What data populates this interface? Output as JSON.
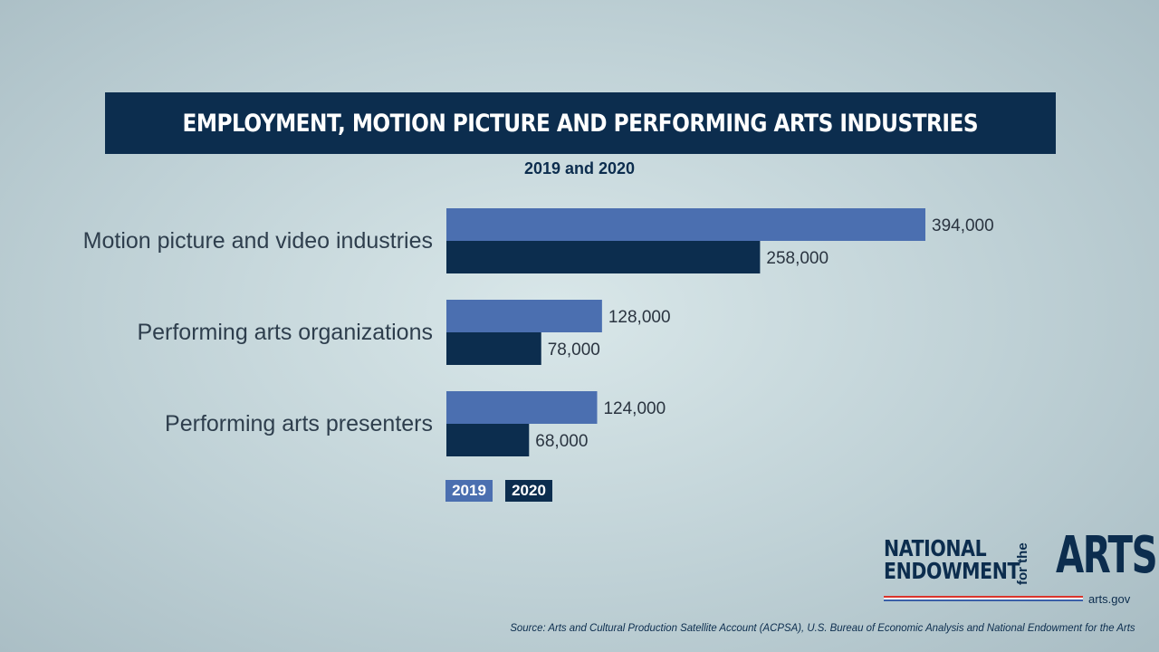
{
  "chart_data": {
    "type": "bar",
    "orientation": "horizontal",
    "title": "EMPLOYMENT, MOTION PICTURE AND PERFORMING ARTS INDUSTRIES",
    "subtitle": "2019 and 2020",
    "categories": [
      "Motion picture and video industries",
      "Performing arts organizations",
      "Performing arts presenters"
    ],
    "series": [
      {
        "name": "2019",
        "values": [
          394000,
          128000,
          124000
        ],
        "labels": [
          "394,000",
          "128,000",
          "124,000"
        ],
        "color": "#4b6fb0"
      },
      {
        "name": "2020",
        "values": [
          258000,
          78000,
          68000
        ],
        "labels": [
          "258,000",
          "78,000",
          "68,000"
        ],
        "color": "#0c2d4e"
      }
    ],
    "xlim": [
      0,
      394000
    ],
    "grid": false,
    "legend_position": "bottom-left"
  },
  "logo": {
    "line1": "NATIONAL",
    "line2": "ENDOWMENT",
    "for_the": "for the",
    "arts": "ARTS",
    "url": "arts.gov"
  },
  "source": "Source: Arts and Cultural Production Satellite Account (ACPSA), U.S. Bureau of Economic Analysis and National Endowment for the Arts"
}
